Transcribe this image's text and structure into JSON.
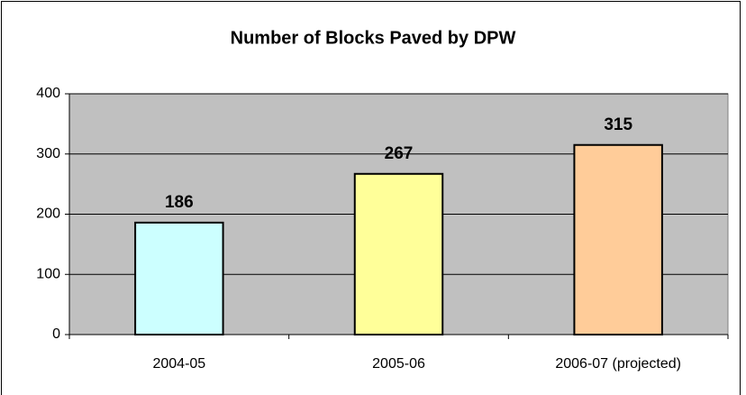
{
  "chart_data": {
    "type": "bar",
    "title": "Number of Blocks Paved by DPW",
    "categories": [
      "2004-05",
      "2005-06",
      "2006-07 (projected)"
    ],
    "values": [
      186,
      267,
      315
    ],
    "colors": [
      "#ccffff",
      "#ffff99",
      "#ffcc99"
    ],
    "ylim": [
      0,
      400
    ],
    "yticks": [
      0,
      100,
      200,
      300,
      400
    ],
    "grid": true
  }
}
